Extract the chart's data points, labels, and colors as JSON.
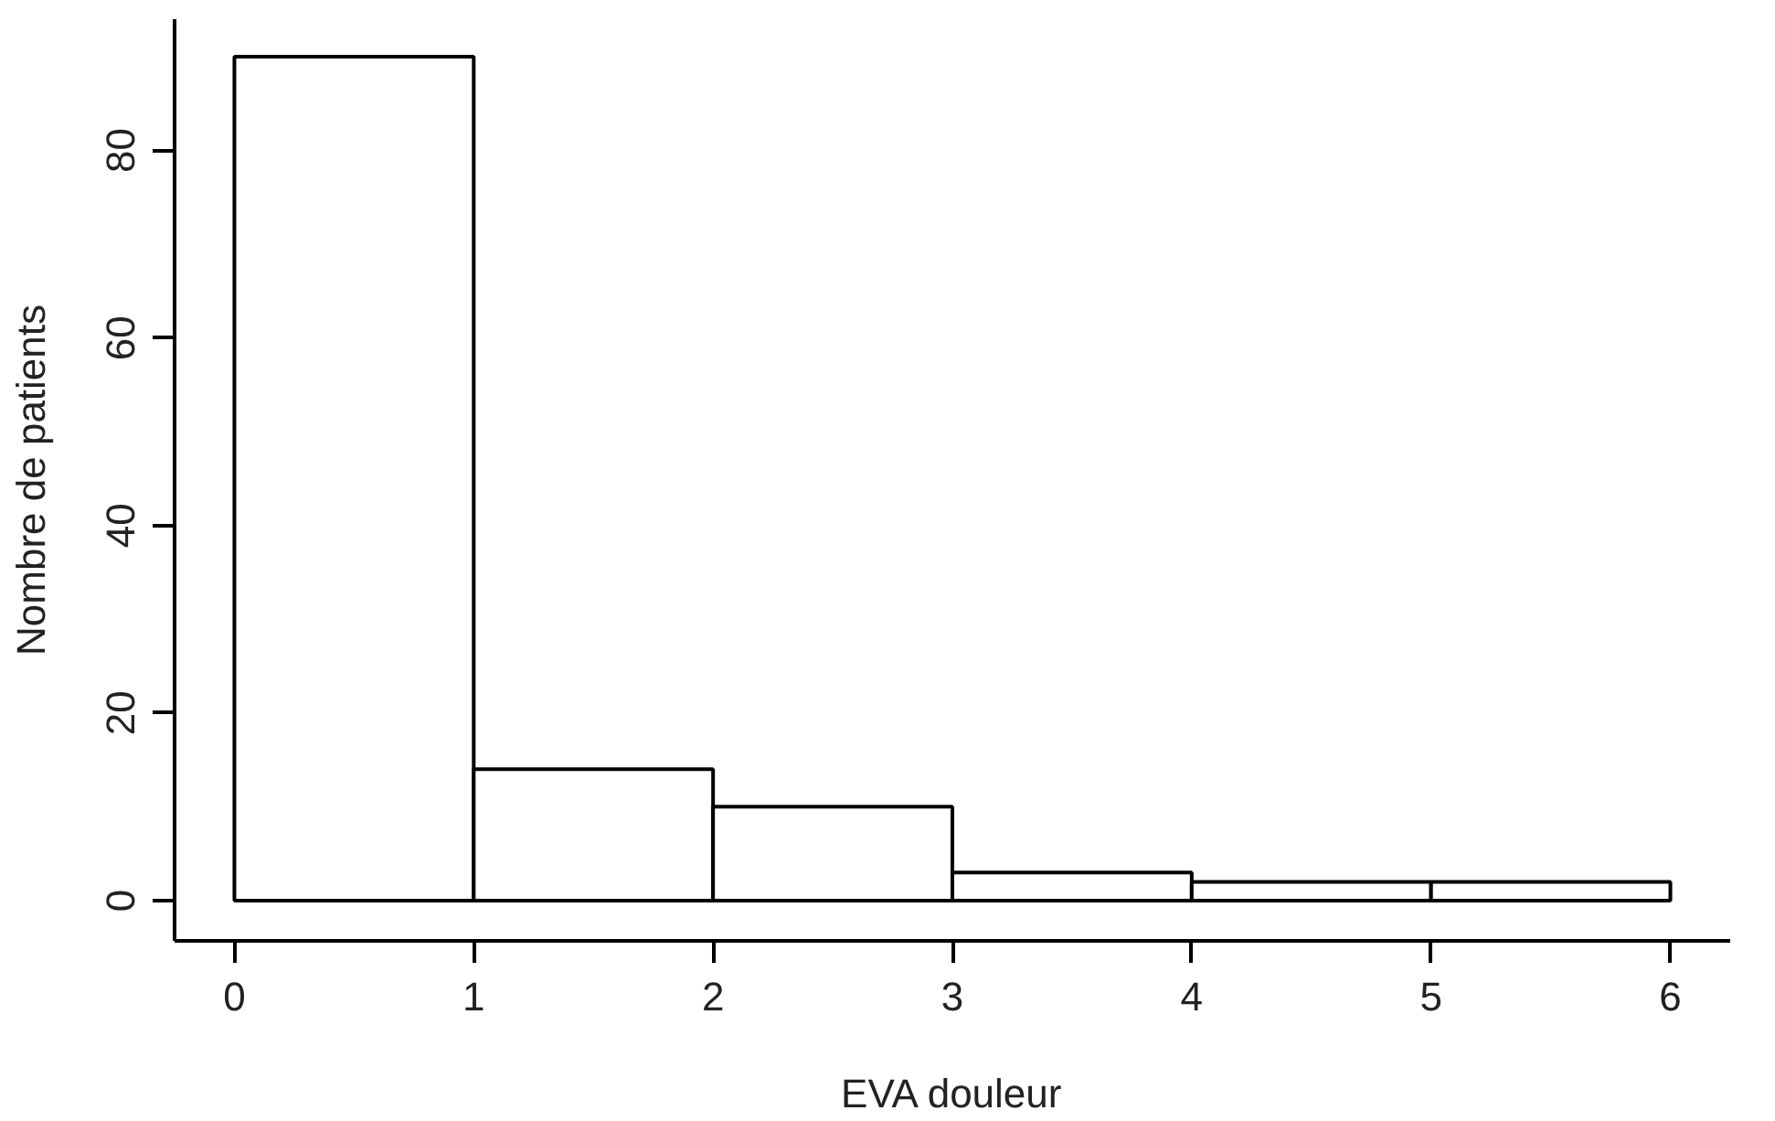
{
  "chart_data": {
    "type": "histogram",
    "xlabel": "EVA douleur",
    "ylabel": "Nombre de patients",
    "bins": [
      0,
      1,
      2,
      3,
      4,
      5,
      6
    ],
    "values": [
      90,
      14,
      10,
      3,
      2,
      2
    ],
    "color": "#ffffff",
    "xlim": [
      -0.25,
      6.25
    ],
    "ylim": [
      -4.3,
      94
    ],
    "xticks": [
      0,
      1,
      2,
      3,
      4,
      5,
      6
    ],
    "yticks": [
      0,
      20,
      40,
      60,
      80
    ],
    "grid": false
  }
}
